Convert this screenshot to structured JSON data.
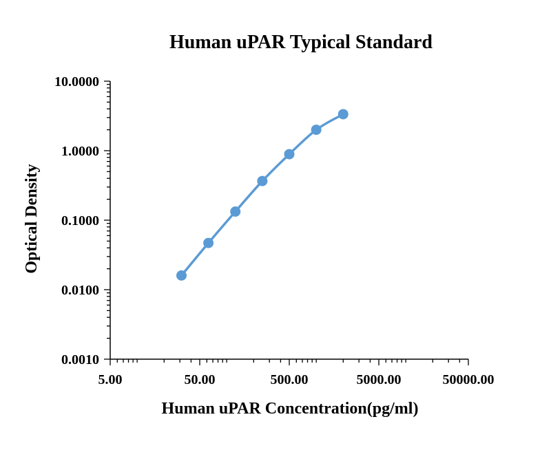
{
  "chart_data": {
    "type": "line",
    "title": "Human uPAR Typical Standard",
    "xlabel": "Human uPAR Concentration(pg/ml)",
    "ylabel": "Optical Density",
    "x_scale": "log",
    "y_scale": "log",
    "xlim": [
      5,
      50000
    ],
    "ylim": [
      0.001,
      10
    ],
    "x_ticks": [
      5,
      50,
      500,
      5000,
      50000
    ],
    "x_tick_labels": [
      "5.00",
      "50.00",
      "500.00",
      "5000.00",
      "50000.00"
    ],
    "y_ticks": [
      0.001,
      0.01,
      0.1,
      1,
      10
    ],
    "y_tick_labels": [
      "0.0010",
      "0.0100",
      "0.1000",
      "1.0000",
      "10.0000"
    ],
    "grid": false,
    "legend": "none",
    "series": [
      {
        "x": [
          31.25,
          62.5,
          125,
          250,
          500,
          1000,
          2000
        ],
        "y": [
          0.016,
          0.047,
          0.133,
          0.366,
          0.89,
          2.0,
          3.35
        ],
        "color": "#5B9BD5",
        "marker": "circle"
      }
    ]
  }
}
